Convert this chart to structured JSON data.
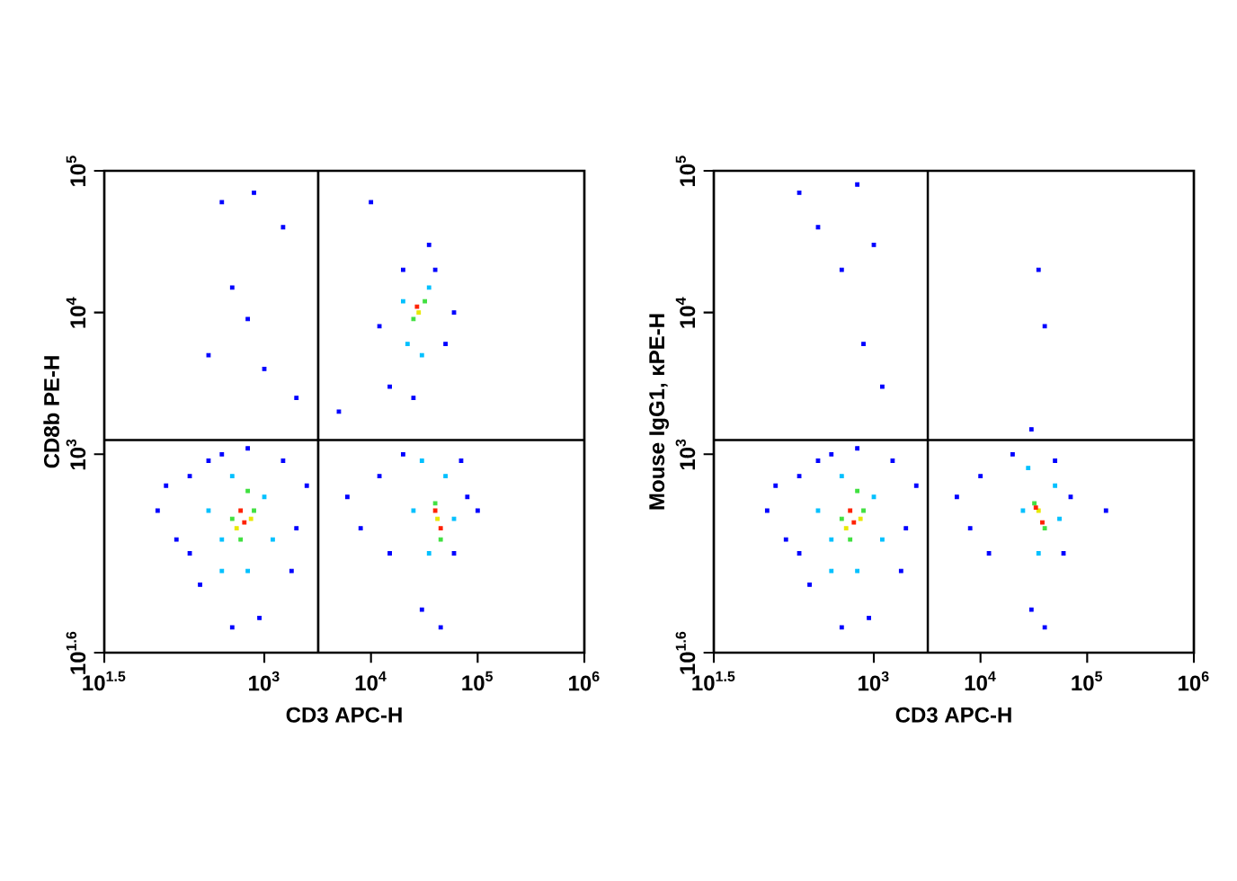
{
  "chart_data": [
    {
      "type": "scatter",
      "xlabel": "CD3 APC-H",
      "ylabel": "CD8b PE-H",
      "log": "xy",
      "marker": "square",
      "grid": false,
      "xlim": [
        31.62,
        1000000
      ],
      "ylim": [
        39.81,
        100000
      ],
      "xticks": [
        {
          "value": 31.62,
          "label": "10$^{1.5}$"
        },
        {
          "value": 1000,
          "label": "10$^{3}$"
        },
        {
          "value": 10000,
          "label": "10$^{4}$"
        },
        {
          "value": 100000,
          "label": "10$^{5}$"
        },
        {
          "value": 1000000,
          "label": "10$^{6}$"
        }
      ],
      "yticks": [
        {
          "value": 39.81,
          "label": "10$^{1.6}$"
        },
        {
          "value": 1000,
          "label": "10$^{3}$"
        },
        {
          "value": 10000,
          "label": "10$^{4}$"
        },
        {
          "value": 100000,
          "label": "10$^{5}$"
        }
      ],
      "ref_lines": [
        {
          "axis": "x",
          "value": 3200,
          "color": "#000000"
        },
        {
          "axis": "y",
          "value": 1260,
          "color": "#000000"
        }
      ],
      "series": [
        {
          "color": "#0000ff",
          "x": [
            100,
            150,
            200,
            250,
            300,
            400,
            1500,
            2000,
            1800,
            500,
            900,
            200,
            120,
            2500,
            700,
            8000,
            12000,
            15000,
            20000,
            60000,
            80000,
            70000,
            30000,
            45000,
            100000,
            6000,
            15000,
            20000,
            40000,
            50000,
            12000,
            25000,
            60000,
            35000,
            5000,
            1000,
            700,
            400,
            800,
            1500,
            300,
            2000,
            10000,
            500
          ],
          "values": [
            400,
            250,
            700,
            120,
            900,
            1000,
            900,
            300,
            150,
            60,
            70,
            200,
            600,
            600,
            1100,
            300,
            700,
            200,
            1000,
            200,
            500,
            900,
            80,
            60,
            400,
            500,
            3000,
            20000,
            20000,
            6000,
            8000,
            2500,
            10000,
            30000,
            2000,
            4000,
            9000,
            60000,
            70000,
            40000,
            5000,
            2500,
            60000,
            15000
          ]
        },
        {
          "color": "#00c0ff",
          "x": [
            300,
            400,
            1000,
            500,
            1200,
            400,
            700,
            25000,
            50000,
            35000,
            60000,
            30000,
            22000,
            35000,
            30000,
            20000
          ],
          "values": [
            400,
            250,
            500,
            700,
            250,
            150,
            150,
            400,
            700,
            200,
            350,
            900,
            6000,
            15000,
            5000,
            12000
          ]
        },
        {
          "color": "#40e040",
          "x": [
            500,
            800,
            600,
            700,
            40000,
            45000,
            25000,
            32000
          ],
          "values": [
            350,
            400,
            250,
            550,
            450,
            250,
            9000,
            12000
          ]
        },
        {
          "color": "#e8e800",
          "x": [
            550,
            750,
            42000,
            28000
          ],
          "values": [
            300,
            350,
            350,
            10000
          ]
        },
        {
          "color": "#ff2000",
          "x": [
            650,
            600,
            40000,
            45000,
            27000
          ],
          "values": [
            330,
            400,
            400,
            300,
            11000
          ]
        }
      ]
    },
    {
      "type": "scatter",
      "xlabel": "CD3 APC-H",
      "ylabel": "Mouse IgG1, κPE-H",
      "log": "xy",
      "marker": "square",
      "grid": false,
      "xlim": [
        31.62,
        1000000
      ],
      "ylim": [
        39.81,
        100000
      ],
      "xticks": [
        {
          "value": 31.62,
          "label": "10$^{1.5}$"
        },
        {
          "value": 1000,
          "label": "10$^{3}$"
        },
        {
          "value": 10000,
          "label": "10$^{4}$"
        },
        {
          "value": 100000,
          "label": "10$^{5}$"
        },
        {
          "value": 1000000,
          "label": "10$^{6}$"
        }
      ],
      "yticks": [
        {
          "value": 39.81,
          "label": "10$^{1.6}$"
        },
        {
          "value": 1000,
          "label": "10$^{3}$"
        },
        {
          "value": 10000,
          "label": "10$^{4}$"
        },
        {
          "value": 100000,
          "label": "10$^{5}$"
        }
      ],
      "ref_lines": [
        {
          "axis": "x",
          "value": 3200,
          "color": "#000000"
        },
        {
          "axis": "y",
          "value": 1260,
          "color": "#000000"
        }
      ],
      "series": [
        {
          "color": "#0000ff",
          "x": [
            100,
            150,
            200,
            250,
            300,
            400,
            1500,
            2000,
            1800,
            500,
            900,
            200,
            120,
            2500,
            700,
            8000,
            10000,
            12000,
            20000,
            60000,
            70000,
            50000,
            30000,
            40000,
            150000,
            6000,
            800,
            500,
            300,
            1000,
            700,
            200,
            1200,
            35000,
            40000,
            30000
          ],
          "values": [
            400,
            250,
            700,
            120,
            900,
            1000,
            900,
            300,
            150,
            60,
            70,
            200,
            600,
            600,
            1100,
            300,
            700,
            200,
            1000,
            200,
            500,
            900,
            80,
            60,
            400,
            500,
            6000,
            20000,
            40000,
            30000,
            80000,
            70000,
            3000,
            20000,
            8000,
            1500
          ]
        },
        {
          "color": "#00c0ff",
          "x": [
            300,
            400,
            1000,
            500,
            1200,
            400,
            700,
            25000,
            50000,
            35000,
            55000,
            28000
          ],
          "values": [
            400,
            250,
            500,
            700,
            250,
            150,
            150,
            400,
            600,
            200,
            350,
            800
          ]
        },
        {
          "color": "#40e040",
          "x": [
            500,
            800,
            600,
            700,
            32000,
            40000
          ],
          "values": [
            350,
            400,
            250,
            550,
            450,
            300
          ]
        },
        {
          "color": "#e8e800",
          "x": [
            550,
            750,
            35000
          ],
          "values": [
            300,
            350,
            400
          ]
        },
        {
          "color": "#ff2000",
          "x": [
            650,
            600,
            33000,
            38000
          ],
          "values": [
            330,
            400,
            420,
            330
          ]
        }
      ]
    }
  ]
}
